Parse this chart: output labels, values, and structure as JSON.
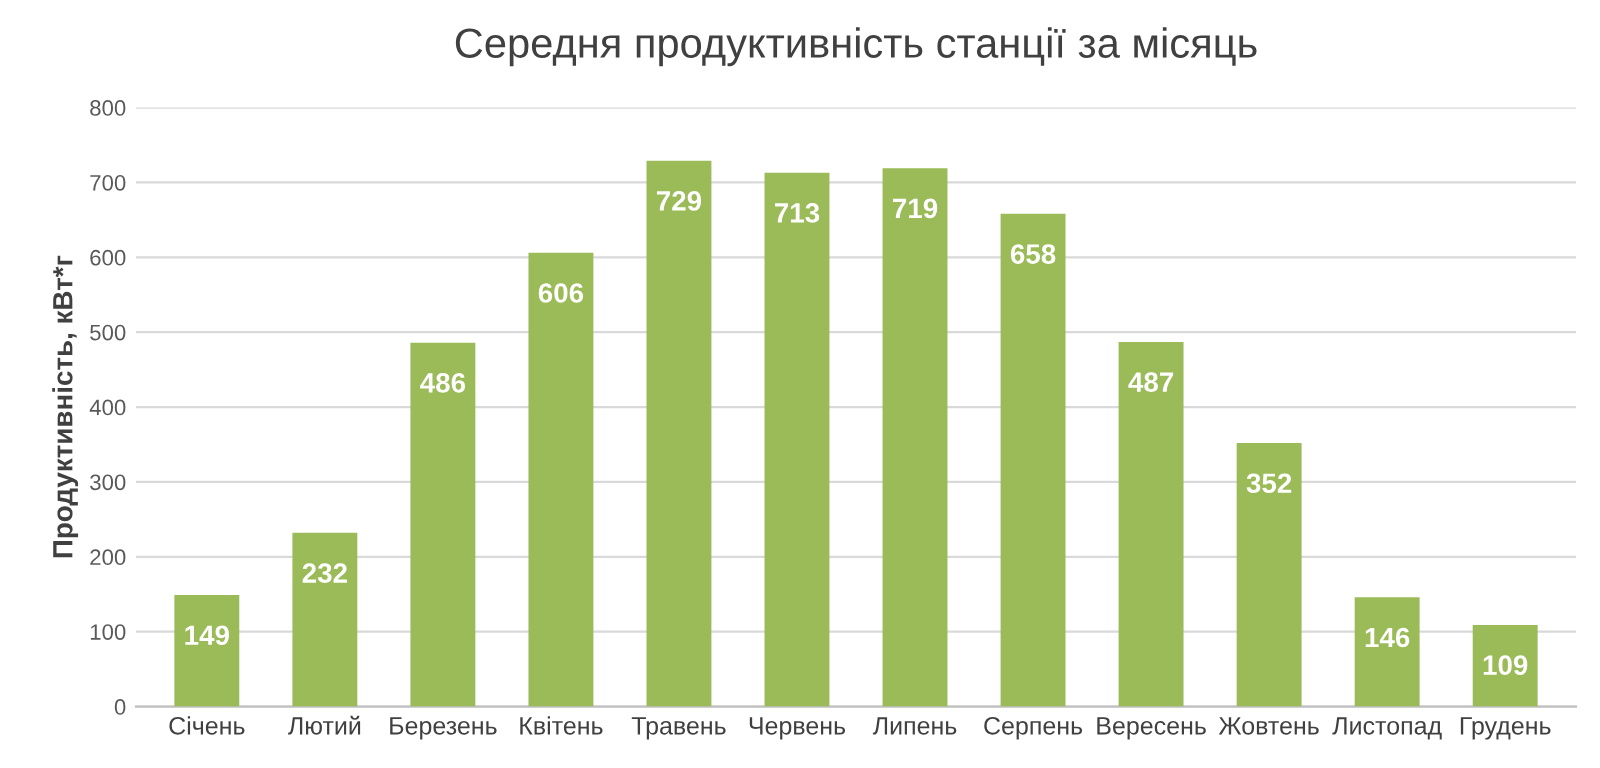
{
  "chart_data": {
    "type": "bar",
    "title": "Середня продуктивність станції за місяць",
    "ylabel": "Продуктивність, кВт*г",
    "categories": [
      "Січень",
      "Лютий",
      "Березень",
      "Квітень",
      "Травень",
      "Червень",
      "Липень",
      "Серпень",
      "Вересень",
      "Жовтень",
      "Листопад",
      "Грудень"
    ],
    "values": [
      149,
      232,
      486,
      606,
      729,
      713,
      719,
      658,
      487,
      352,
      146,
      109
    ],
    "color": "#9bbb59",
    "ylim": [
      0,
      800
    ],
    "yticks": [
      0,
      100,
      200,
      300,
      400,
      500,
      600,
      700,
      800
    ],
    "grid": "y",
    "data_labels": true
  }
}
